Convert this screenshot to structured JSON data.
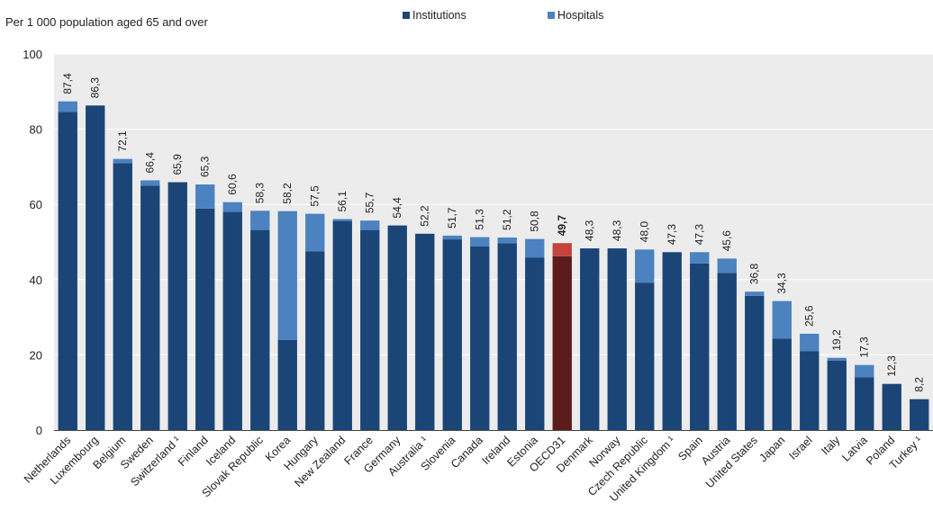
{
  "subtitle": "Per 1 000 population aged 65 and over",
  "legend": {
    "institutions": "Institutions",
    "hospitals": "Hospitals"
  },
  "colors": {
    "institutions": "#1b4577",
    "hospitals": "#4b82bf",
    "oecd_institutions": "#5c1c1c",
    "oecd_hospitals": "#c2443c",
    "plot_background": "#ececec",
    "grid": "#ffffff"
  },
  "chart_data": {
    "type": "bar",
    "stacked": true,
    "ylim": [
      0,
      100
    ],
    "yticks": [
      0,
      20,
      40,
      60,
      80,
      100
    ],
    "grid": true,
    "legend_position": "top",
    "highlight_category": "OECD31",
    "categories": [
      "Netherlands",
      "Luxembourg",
      "Belgium",
      "Sweden",
      "Switzerland ¹",
      "Finland",
      "Iceland",
      "Slovak Republic",
      "Korea",
      "Hungary",
      "New Zealand",
      "France",
      "Germany",
      "Australia ¹",
      "Slovenia",
      "Canada",
      "Ireland",
      "Estonia",
      "OECD31",
      "Denmark",
      "Norway",
      "Czech Republic",
      "United Kingdom ¹",
      "Spain",
      "Austria",
      "United States",
      "Japan",
      "Israel",
      "Italy",
      "Latvia",
      "Poland",
      "Turkey ¹"
    ],
    "series": [
      {
        "name": "Institutions",
        "values": [
          84.6,
          86.3,
          71.0,
          65.0,
          65.9,
          58.9,
          58.0,
          53.2,
          24.0,
          47.5,
          55.6,
          53.2,
          54.4,
          52.2,
          50.7,
          48.8,
          49.7,
          45.9,
          46.2,
          48.3,
          48.3,
          39.2,
          47.3,
          44.3,
          41.8,
          35.7,
          24.3,
          21.0,
          18.5,
          14.0,
          12.2,
          8.2
        ]
      },
      {
        "name": "Hospitals",
        "values": [
          2.8,
          0.0,
          1.1,
          1.4,
          0.0,
          6.4,
          2.6,
          5.1,
          34.2,
          10.0,
          0.5,
          2.5,
          0.0,
          0.0,
          1.0,
          2.5,
          1.5,
          4.9,
          3.5,
          0.0,
          0.0,
          8.8,
          0.0,
          3.0,
          3.8,
          1.1,
          10.0,
          4.6,
          0.7,
          3.3,
          0.1,
          0.0
        ]
      }
    ],
    "data_labels": [
      "87,4",
      "86,3",
      "72,1",
      "66,4",
      "65,9",
      "65,3",
      "60,6",
      "58,3",
      "58,2",
      "57,5",
      "56,1",
      "55,7",
      "54,4",
      "52,2",
      "51,7",
      "51,3",
      "51,2",
      "50,8",
      "49,7",
      "48,3",
      "48,3",
      "48,0",
      "47,3",
      "47,3",
      "45,6",
      "36,8",
      "34,3",
      "25,6",
      "19,2",
      "17,3",
      "12,3",
      "8,2"
    ]
  }
}
